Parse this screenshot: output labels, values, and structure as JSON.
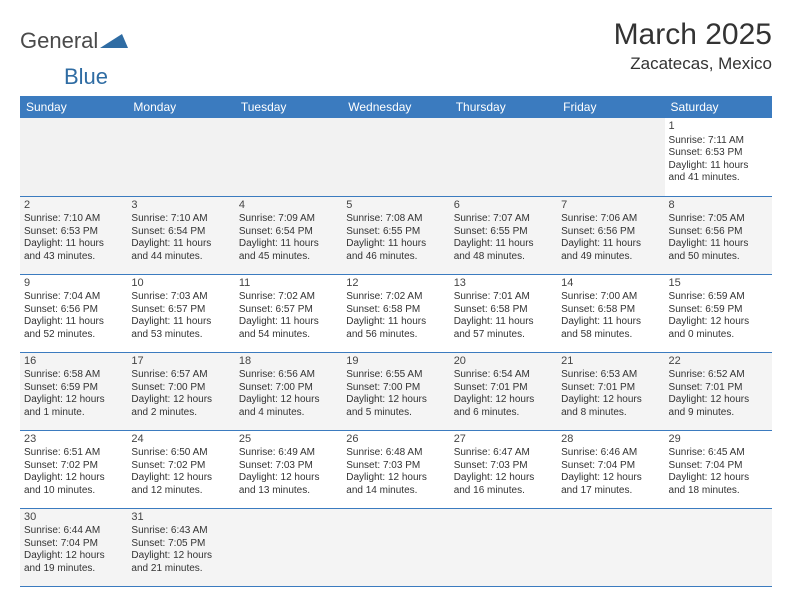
{
  "logo": {
    "text1": "General",
    "text2": "Blue",
    "shape_color": "#2f6ca3",
    "text1_color": "#4a4a4a"
  },
  "title": "March 2025",
  "location": "Zacatecas, Mexico",
  "header_bg": "#3b7bbf",
  "header_fg": "#ffffff",
  "alt_row_bg": "#f4f4f4",
  "border_color": "#3b7bbf",
  "days_of_week": [
    "Sunday",
    "Monday",
    "Tuesday",
    "Wednesday",
    "Thursday",
    "Friday",
    "Saturday"
  ],
  "weeks": [
    {
      "alt": false,
      "cells": [
        null,
        null,
        null,
        null,
        null,
        null,
        {
          "n": "1",
          "sr": "Sunrise: 7:11 AM",
          "ss": "Sunset: 6:53 PM",
          "d1": "Daylight: 11 hours",
          "d2": "and 41 minutes."
        }
      ]
    },
    {
      "alt": true,
      "cells": [
        {
          "n": "2",
          "sr": "Sunrise: 7:10 AM",
          "ss": "Sunset: 6:53 PM",
          "d1": "Daylight: 11 hours",
          "d2": "and 43 minutes."
        },
        {
          "n": "3",
          "sr": "Sunrise: 7:10 AM",
          "ss": "Sunset: 6:54 PM",
          "d1": "Daylight: 11 hours",
          "d2": "and 44 minutes."
        },
        {
          "n": "4",
          "sr": "Sunrise: 7:09 AM",
          "ss": "Sunset: 6:54 PM",
          "d1": "Daylight: 11 hours",
          "d2": "and 45 minutes."
        },
        {
          "n": "5",
          "sr": "Sunrise: 7:08 AM",
          "ss": "Sunset: 6:55 PM",
          "d1": "Daylight: 11 hours",
          "d2": "and 46 minutes."
        },
        {
          "n": "6",
          "sr": "Sunrise: 7:07 AM",
          "ss": "Sunset: 6:55 PM",
          "d1": "Daylight: 11 hours",
          "d2": "and 48 minutes."
        },
        {
          "n": "7",
          "sr": "Sunrise: 7:06 AM",
          "ss": "Sunset: 6:56 PM",
          "d1": "Daylight: 11 hours",
          "d2": "and 49 minutes."
        },
        {
          "n": "8",
          "sr": "Sunrise: 7:05 AM",
          "ss": "Sunset: 6:56 PM",
          "d1": "Daylight: 11 hours",
          "d2": "and 50 minutes."
        }
      ]
    },
    {
      "alt": false,
      "cells": [
        {
          "n": "9",
          "sr": "Sunrise: 7:04 AM",
          "ss": "Sunset: 6:56 PM",
          "d1": "Daylight: 11 hours",
          "d2": "and 52 minutes."
        },
        {
          "n": "10",
          "sr": "Sunrise: 7:03 AM",
          "ss": "Sunset: 6:57 PM",
          "d1": "Daylight: 11 hours",
          "d2": "and 53 minutes."
        },
        {
          "n": "11",
          "sr": "Sunrise: 7:02 AM",
          "ss": "Sunset: 6:57 PM",
          "d1": "Daylight: 11 hours",
          "d2": "and 54 minutes."
        },
        {
          "n": "12",
          "sr": "Sunrise: 7:02 AM",
          "ss": "Sunset: 6:58 PM",
          "d1": "Daylight: 11 hours",
          "d2": "and 56 minutes."
        },
        {
          "n": "13",
          "sr": "Sunrise: 7:01 AM",
          "ss": "Sunset: 6:58 PM",
          "d1": "Daylight: 11 hours",
          "d2": "and 57 minutes."
        },
        {
          "n": "14",
          "sr": "Sunrise: 7:00 AM",
          "ss": "Sunset: 6:58 PM",
          "d1": "Daylight: 11 hours",
          "d2": "and 58 minutes."
        },
        {
          "n": "15",
          "sr": "Sunrise: 6:59 AM",
          "ss": "Sunset: 6:59 PM",
          "d1": "Daylight: 12 hours",
          "d2": "and 0 minutes."
        }
      ]
    },
    {
      "alt": true,
      "cells": [
        {
          "n": "16",
          "sr": "Sunrise: 6:58 AM",
          "ss": "Sunset: 6:59 PM",
          "d1": "Daylight: 12 hours",
          "d2": "and 1 minute."
        },
        {
          "n": "17",
          "sr": "Sunrise: 6:57 AM",
          "ss": "Sunset: 7:00 PM",
          "d1": "Daylight: 12 hours",
          "d2": "and 2 minutes."
        },
        {
          "n": "18",
          "sr": "Sunrise: 6:56 AM",
          "ss": "Sunset: 7:00 PM",
          "d1": "Daylight: 12 hours",
          "d2": "and 4 minutes."
        },
        {
          "n": "19",
          "sr": "Sunrise: 6:55 AM",
          "ss": "Sunset: 7:00 PM",
          "d1": "Daylight: 12 hours",
          "d2": "and 5 minutes."
        },
        {
          "n": "20",
          "sr": "Sunrise: 6:54 AM",
          "ss": "Sunset: 7:01 PM",
          "d1": "Daylight: 12 hours",
          "d2": "and 6 minutes."
        },
        {
          "n": "21",
          "sr": "Sunrise: 6:53 AM",
          "ss": "Sunset: 7:01 PM",
          "d1": "Daylight: 12 hours",
          "d2": "and 8 minutes."
        },
        {
          "n": "22",
          "sr": "Sunrise: 6:52 AM",
          "ss": "Sunset: 7:01 PM",
          "d1": "Daylight: 12 hours",
          "d2": "and 9 minutes."
        }
      ]
    },
    {
      "alt": false,
      "cells": [
        {
          "n": "23",
          "sr": "Sunrise: 6:51 AM",
          "ss": "Sunset: 7:02 PM",
          "d1": "Daylight: 12 hours",
          "d2": "and 10 minutes."
        },
        {
          "n": "24",
          "sr": "Sunrise: 6:50 AM",
          "ss": "Sunset: 7:02 PM",
          "d1": "Daylight: 12 hours",
          "d2": "and 12 minutes."
        },
        {
          "n": "25",
          "sr": "Sunrise: 6:49 AM",
          "ss": "Sunset: 7:03 PM",
          "d1": "Daylight: 12 hours",
          "d2": "and 13 minutes."
        },
        {
          "n": "26",
          "sr": "Sunrise: 6:48 AM",
          "ss": "Sunset: 7:03 PM",
          "d1": "Daylight: 12 hours",
          "d2": "and 14 minutes."
        },
        {
          "n": "27",
          "sr": "Sunrise: 6:47 AM",
          "ss": "Sunset: 7:03 PM",
          "d1": "Daylight: 12 hours",
          "d2": "and 16 minutes."
        },
        {
          "n": "28",
          "sr": "Sunrise: 6:46 AM",
          "ss": "Sunset: 7:04 PM",
          "d1": "Daylight: 12 hours",
          "d2": "and 17 minutes."
        },
        {
          "n": "29",
          "sr": "Sunrise: 6:45 AM",
          "ss": "Sunset: 7:04 PM",
          "d1": "Daylight: 12 hours",
          "d2": "and 18 minutes."
        }
      ]
    },
    {
      "alt": true,
      "cells": [
        {
          "n": "30",
          "sr": "Sunrise: 6:44 AM",
          "ss": "Sunset: 7:04 PM",
          "d1": "Daylight: 12 hours",
          "d2": "and 19 minutes."
        },
        {
          "n": "31",
          "sr": "Sunrise: 6:43 AM",
          "ss": "Sunset: 7:05 PM",
          "d1": "Daylight: 12 hours",
          "d2": "and 21 minutes."
        },
        null,
        null,
        null,
        null,
        null
      ]
    }
  ]
}
